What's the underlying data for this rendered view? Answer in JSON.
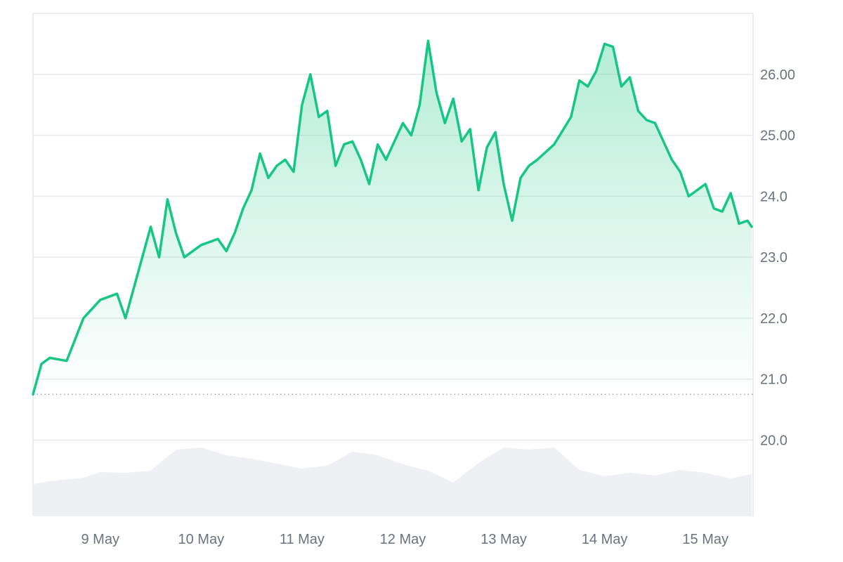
{
  "chart_data": {
    "type": "area",
    "title": "",
    "xlabel": "",
    "ylabel": "",
    "x_tick_labels": [
      "9 May",
      "10 May",
      "11 May",
      "12 May",
      "13 May",
      "14 May",
      "15 May"
    ],
    "y_tick_values": [
      20.0,
      21.0,
      22.0,
      23.0,
      24.0,
      25.0,
      26.0
    ],
    "y_tick_labels": [
      "20.0",
      "21.0",
      "22.0",
      "23.0",
      "24.0",
      "25.00",
      "26.00"
    ],
    "xlim": [
      "8 May 08:00",
      "15 May 11:00"
    ],
    "ylim": [
      18.75,
      27.0
    ],
    "y_axis_position": "right",
    "grid": true,
    "legend": "none",
    "baseline_value": 20.75,
    "series": [
      {
        "x": [
          "8 May 08:00",
          "8 May 10:00",
          "8 May 12:00",
          "8 May 16:00",
          "8 May 20:00",
          "9 May 00:00",
          "9 May 04:00",
          "9 May 06:00",
          "9 May 08:00",
          "9 May 12:00",
          "9 May 14:00",
          "9 May 16:00",
          "9 May 18:00",
          "9 May 20:00",
          "10 May 00:00",
          "10 May 04:00",
          "10 May 06:00",
          "10 May 08:00",
          "10 May 10:00",
          "10 May 12:00",
          "10 May 14:00",
          "10 May 16:00",
          "10 May 18:00",
          "10 May 20:00",
          "10 May 22:00",
          "11 May 00:00",
          "11 May 02:00",
          "11 May 04:00",
          "11 May 06:00",
          "11 May 08:00",
          "11 May 10:00",
          "11 May 12:00",
          "11 May 14:00",
          "11 May 16:00",
          "11 May 18:00",
          "11 May 20:00",
          "12 May 00:00",
          "12 May 02:00",
          "12 May 04:00",
          "12 May 06:00",
          "12 May 08:00",
          "12 May 10:00",
          "12 May 12:00",
          "12 May 14:00",
          "12 May 16:00",
          "12 May 18:00",
          "12 May 20:00",
          "12 May 22:00",
          "13 May 00:00",
          "13 May 02:00",
          "13 May 04:00",
          "13 May 06:00",
          "13 May 08:00",
          "13 May 12:00",
          "13 May 16:00",
          "13 May 18:00",
          "13 May 20:00",
          "13 May 22:00",
          "14 May 00:00",
          "14 May 02:00",
          "14 May 04:00",
          "14 May 06:00",
          "14 May 08:00",
          "14 May 10:00",
          "14 May 12:00",
          "14 May 14:00",
          "14 May 16:00",
          "14 May 18:00",
          "14 May 20:00",
          "15 May 00:00",
          "15 May 02:00",
          "15 May 04:00",
          "15 May 06:00",
          "15 May 08:00",
          "15 May 10:00",
          "15 May 11:00"
        ],
        "y": [
          20.75,
          21.25,
          21.35,
          21.3,
          22.0,
          22.3,
          22.4,
          22.0,
          22.5,
          23.5,
          23.0,
          23.95,
          23.4,
          23.0,
          23.2,
          23.3,
          23.1,
          23.4,
          23.8,
          24.1,
          24.7,
          24.3,
          24.5,
          24.6,
          24.4,
          25.5,
          26.0,
          25.3,
          25.4,
          24.5,
          24.85,
          24.9,
          24.6,
          24.2,
          24.85,
          24.6,
          25.2,
          25.0,
          25.5,
          26.55,
          25.7,
          25.2,
          25.6,
          24.9,
          25.1,
          24.1,
          24.8,
          25.05,
          24.2,
          23.6,
          24.3,
          24.5,
          24.6,
          24.85,
          25.3,
          25.9,
          25.8,
          26.05,
          26.5,
          26.45,
          25.8,
          25.95,
          25.4,
          25.25,
          25.2,
          24.9,
          24.6,
          24.4,
          24.0,
          24.2,
          23.8,
          23.75,
          24.05,
          23.55,
          23.6,
          23.5
        ]
      }
    ],
    "volume_series": {
      "x": [
        "8 May 08:00",
        "8 May 12:00",
        "8 May 20:00",
        "9 May 00:00",
        "9 May 06:00",
        "9 May 12:00",
        "9 May 18:00",
        "10 May 00:00",
        "10 May 06:00",
        "10 May 12:00",
        "10 May 18:00",
        "11 May 00:00",
        "11 May 06:00",
        "11 May 12:00",
        "11 May 18:00",
        "12 May 00:00",
        "12 May 06:00",
        "12 May 12:00",
        "12 May 18:00",
        "13 May 00:00",
        "13 May 06:00",
        "13 May 12:00",
        "13 May 18:00",
        "14 May 00:00",
        "14 May 06:00",
        "14 May 12:00",
        "14 May 18:00",
        "15 May 00:00",
        "15 May 06:00",
        "15 May 11:00"
      ],
      "relative": [
        0.46,
        0.5,
        0.55,
        0.63,
        0.62,
        0.65,
        0.95,
        0.98,
        0.87,
        0.82,
        0.75,
        0.68,
        0.72,
        0.92,
        0.87,
        0.74,
        0.65,
        0.48,
        0.76,
        0.98,
        0.95,
        0.98,
        0.66,
        0.57,
        0.62,
        0.58,
        0.66,
        0.62,
        0.54,
        0.6
      ]
    },
    "colors": {
      "line": "#16c784",
      "area_top": "#16c784",
      "volume": "#eef0f3",
      "baseline": "#9ca3af",
      "grid": "#e8eaed",
      "tick_text": "#6b7280"
    }
  }
}
